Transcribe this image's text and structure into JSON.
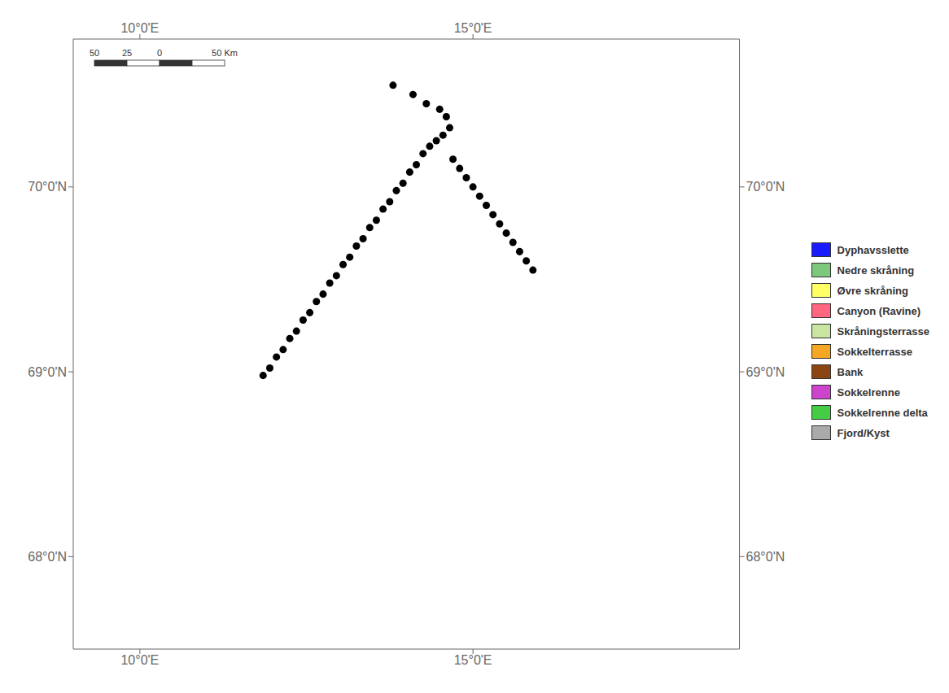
{
  "chart_data": {
    "type": "scatter",
    "color": "#000000",
    "xlim": [
      9.0,
      19.0
    ],
    "ylim": [
      67.5,
      70.8
    ],
    "xticks": [
      {
        "value": 10.0,
        "label": "10°0'E"
      },
      {
        "value": 15.0,
        "label": "15°0'E"
      }
    ],
    "yticks": [
      {
        "value": 68.0,
        "label": "68°0'N"
      },
      {
        "value": 69.0,
        "label": "69°0'N"
      },
      {
        "value": 70.0,
        "label": "70°0'N"
      }
    ],
    "grid": false,
    "legend": "right",
    "legend_entries": [
      {
        "name": "Dyphavsslette",
        "color": "#1a1aff"
      },
      {
        "name": "Nedre skråning",
        "color": "#7ec87e"
      },
      {
        "name": "Øvre skråning",
        "color": "#ffff66"
      },
      {
        "name": "Canyon (Ravine)",
        "color": "#ff6680"
      },
      {
        "name": "Skråningsterrasse",
        "color": "#c8e6a0"
      },
      {
        "name": "Sokkelterrasse",
        "color": "#f5a623"
      },
      {
        "name": "Bank",
        "color": "#8b4513"
      },
      {
        "name": "Sokkelrenne",
        "color": "#cc44cc"
      },
      {
        "name": "Sokkelrenne delta",
        "color": "#44cc44"
      },
      {
        "name": "Fjord/Kyst",
        "color": "#aaaaaa"
      }
    ],
    "annotations": [
      "50",
      "25",
      "0",
      "50 Km"
    ],
    "x": [
      13.8,
      14.1,
      14.3,
      14.5,
      14.6,
      14.65,
      14.55,
      14.45,
      14.35,
      14.25,
      14.15,
      14.05,
      13.95,
      13.85,
      13.75,
      13.65,
      13.55,
      13.45,
      13.35,
      13.25,
      13.15,
      13.05,
      12.95,
      12.85,
      12.75,
      12.65,
      12.55,
      12.45,
      12.35,
      12.25,
      12.15,
      12.05,
      11.95,
      11.85,
      14.7,
      14.8,
      14.9,
      15.0,
      15.1,
      15.2,
      15.3,
      15.4,
      15.5,
      15.6,
      15.7,
      15.8,
      15.9
    ],
    "values": [
      70.55,
      70.5,
      70.45,
      70.42,
      70.38,
      70.32,
      70.28,
      70.25,
      70.22,
      70.18,
      70.12,
      70.08,
      70.02,
      69.98,
      69.92,
      69.88,
      69.82,
      69.78,
      69.72,
      69.68,
      69.62,
      69.58,
      69.52,
      69.48,
      69.42,
      69.38,
      69.32,
      69.28,
      69.22,
      69.18,
      69.12,
      69.08,
      69.02,
      68.98,
      70.15,
      70.1,
      70.05,
      70.0,
      69.95,
      69.9,
      69.85,
      69.8,
      69.75,
      69.7,
      69.65,
      69.6,
      69.55
    ]
  }
}
